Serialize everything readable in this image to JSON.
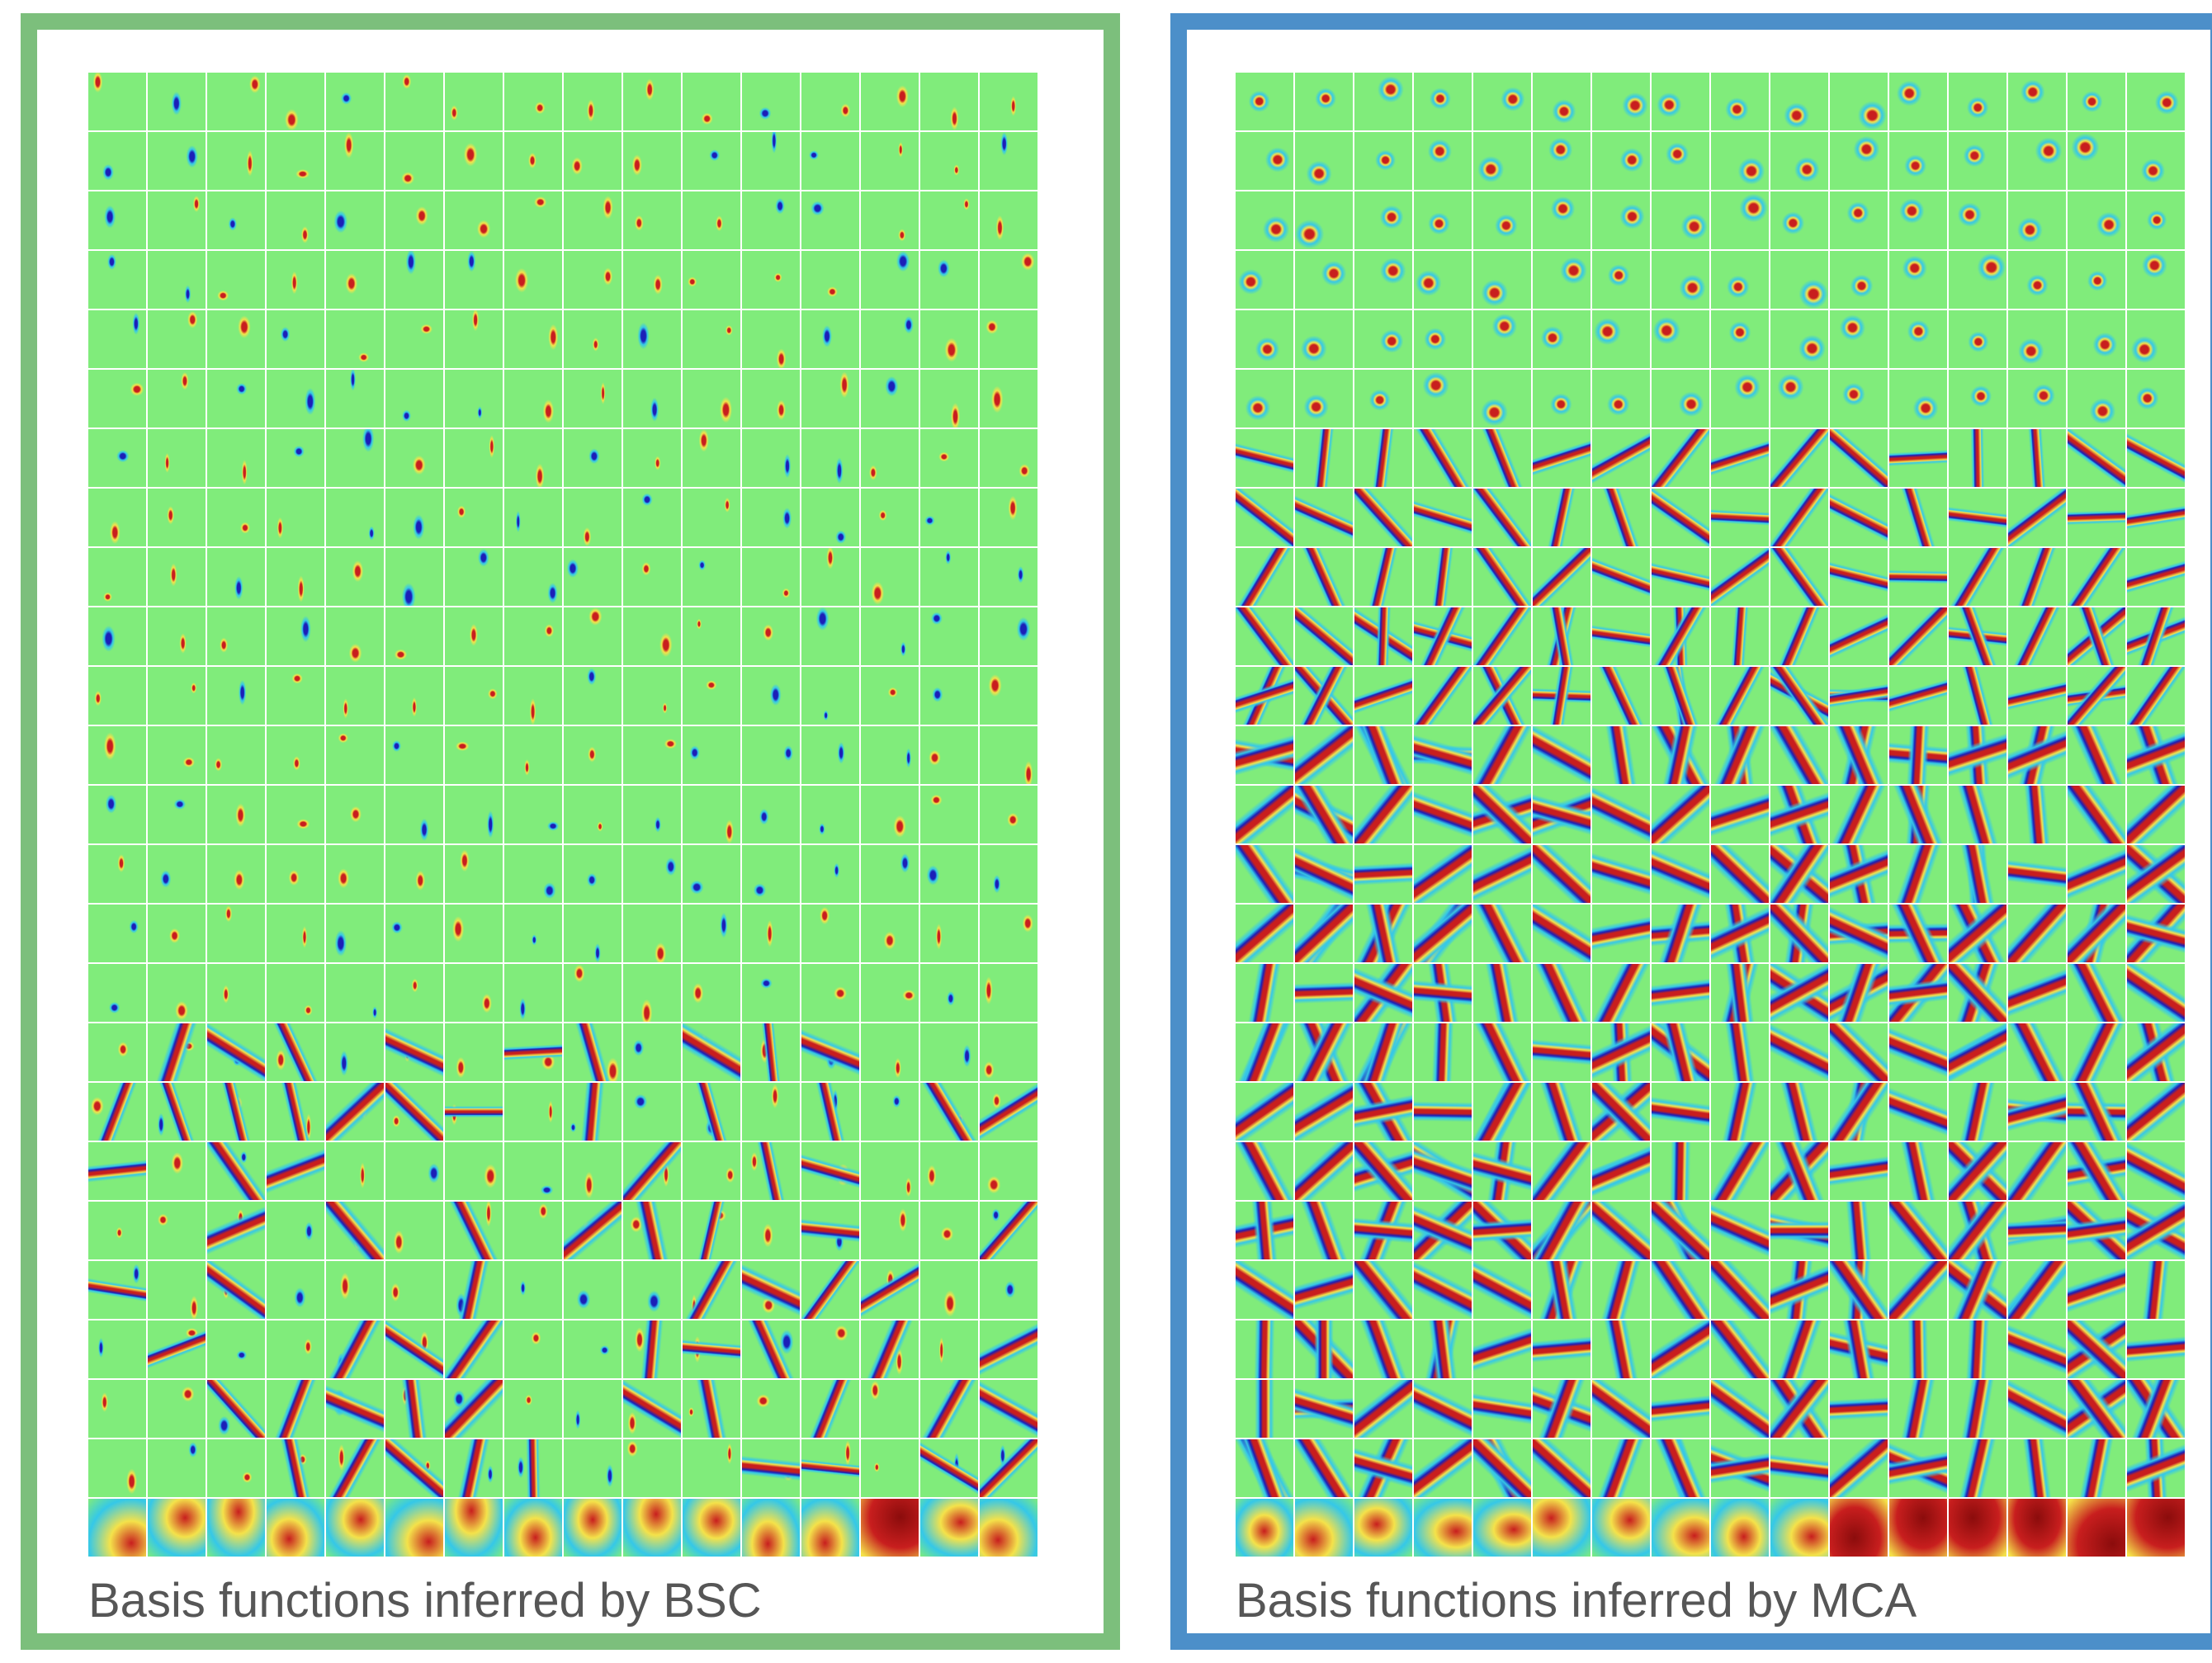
{
  "figure": {
    "panels": [
      {
        "id": "bsc",
        "caption": "Basis functions inferred by BSC",
        "frame_color": "#7cbf7c",
        "grid_rows": 25,
        "grid_cols": 16,
        "dominant_pattern": "localized-blobs",
        "last_row": "broad-low-frequency"
      },
      {
        "id": "mca",
        "caption": "Basis functions inferred by MCA",
        "frame_color": "#4c8fc9",
        "grid_rows": 25,
        "grid_cols": 16,
        "dominant_pattern": "center-surround-to-gabor-edges",
        "last_row": "broad-low-frequency"
      }
    ],
    "colormap": {
      "background": "#80ec7b",
      "positive": "#c81e1e",
      "positive_light": "#f4e24a",
      "negative": "#1b1fb8",
      "negative_light": "#35c8e8",
      "saturated_dark": "#8b0c0c"
    }
  }
}
